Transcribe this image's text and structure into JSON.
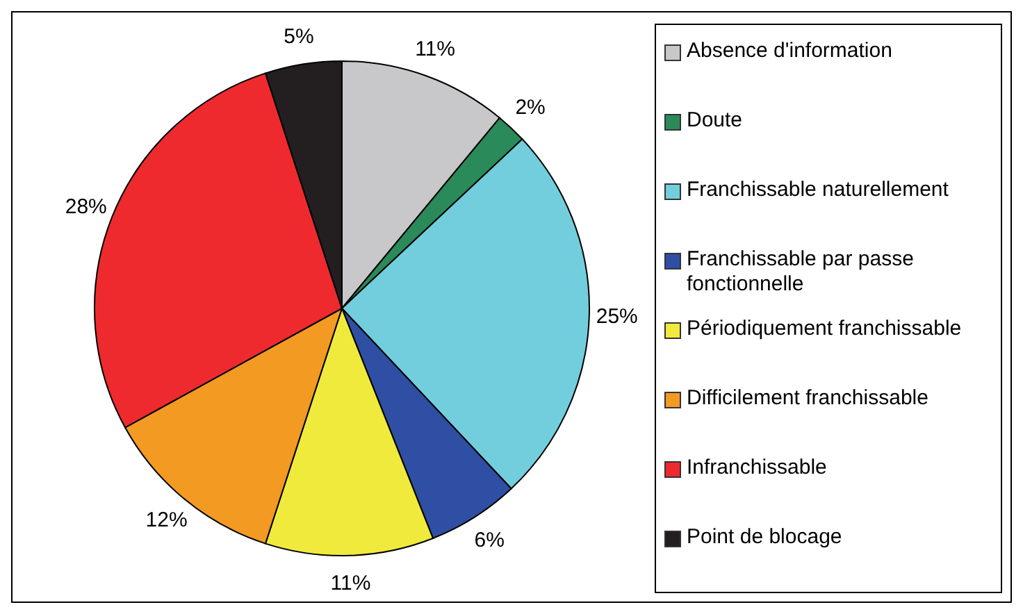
{
  "chart_data": {
    "type": "pie",
    "categories": [
      "Absence d'information",
      "Doute",
      "Franchissable naturellement",
      "Franchissable par passe fonctionnelle",
      "Périodiquement franchissable",
      "Difficilement franchissable",
      "Infranchissable",
      "Point de blocage"
    ],
    "values": [
      11,
      2,
      25,
      6,
      11,
      12,
      28,
      5
    ],
    "value_labels": [
      "11%",
      "2%",
      "25%",
      "6%",
      "11%",
      "12%",
      "28%",
      "5%"
    ],
    "colors": [
      "#c8c8ca",
      "#2a8a5a",
      "#72cedc",
      "#2e4fa3",
      "#f0ea3c",
      "#f39a23",
      "#ee2a2e",
      "#231f20"
    ],
    "legend": "right"
  }
}
